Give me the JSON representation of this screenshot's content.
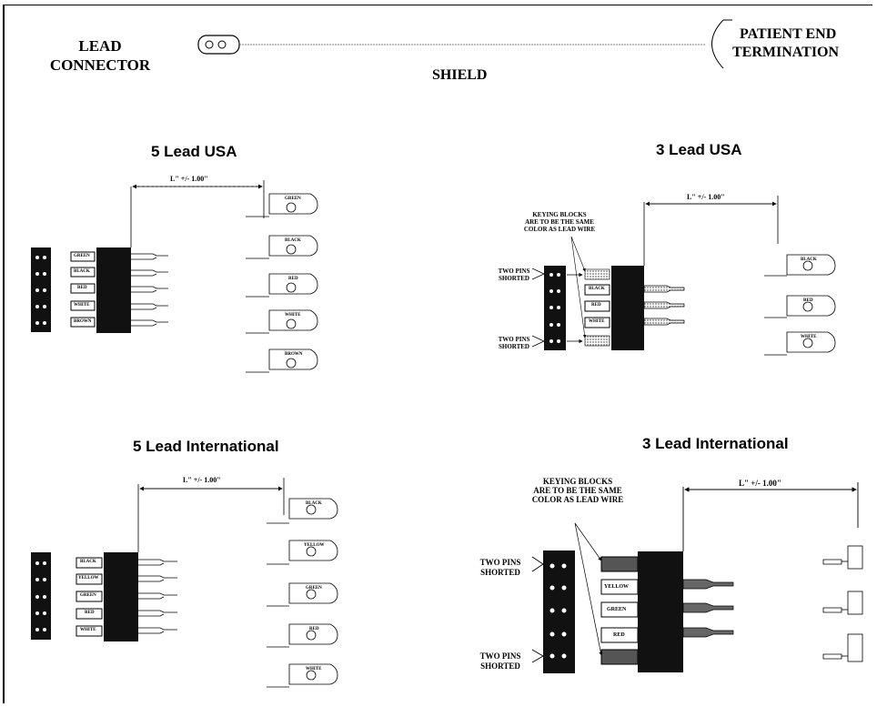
{
  "header": {
    "lead_connector": [
      "LEAD",
      "CONNECTOR"
    ],
    "shield": "SHIELD",
    "patient_end": [
      "PATIENT END",
      "TERMINATION"
    ]
  },
  "sections": {
    "usa5": {
      "title": "5 Lead USA",
      "dimension": "L\" +/- 1.00\"",
      "wires": [
        "GREEN",
        "BLACK",
        "RED",
        "WHITE",
        "BROWN"
      ]
    },
    "usa3": {
      "title": "3 Lead USA",
      "dimension": "L\" +/- 1.00\"",
      "wires": [
        "BLACK",
        "RED",
        "WHITE"
      ],
      "note": [
        "KEYING BLOCKS",
        "ARE TO BE THE SAME",
        "COLOR AS LEAD WIRE"
      ],
      "shorted": [
        "TWO PINS",
        "SHORTED"
      ]
    },
    "intl5": {
      "title": "5 Lead International",
      "dimension": "L\" +/- 1.00\"",
      "wires": [
        "BLACK",
        "YELLOW",
        "GREEN",
        "RED",
        "WHITE"
      ]
    },
    "intl3": {
      "title": "3 Lead International",
      "dimension": "L\" +/- 1.00\"",
      "wires": [
        "YELLOW",
        "GREEN",
        "RED"
      ],
      "note": [
        "KEYING BLOCKS",
        "ARE TO BE THE SAME",
        "COLOR AS LEAD WIRE"
      ],
      "shorted": [
        "TWO PINS",
        "SHORTED"
      ]
    }
  }
}
